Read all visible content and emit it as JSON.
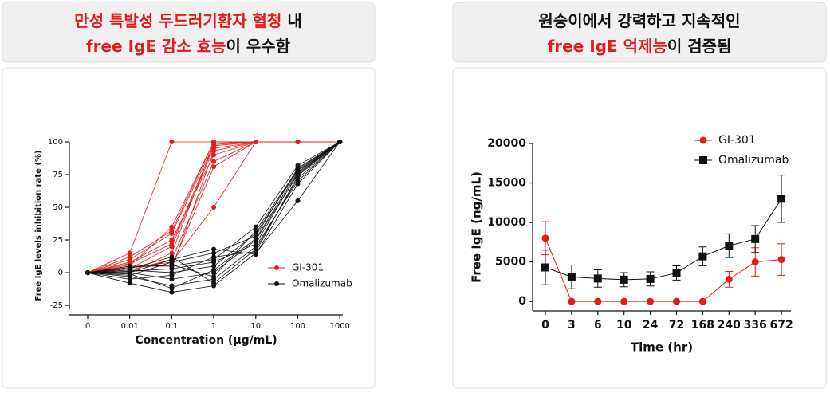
{
  "panels": [
    {
      "heading": [
        [
          {
            "text": "만성 특발성 두드러기환자 혈청",
            "highlight": true
          },
          {
            "text": " 내",
            "highlight": false
          }
        ],
        [
          {
            "text": "free IgE 감소 효능",
            "highlight": true
          },
          {
            "text": "이 우수함",
            "highlight": false
          }
        ]
      ]
    },
    {
      "heading": [
        [
          {
            "text": "원숭이에서 강력하고 지속적인",
            "highlight": false
          }
        ],
        [
          {
            "text": "free IgE 억제능",
            "highlight": true
          },
          {
            "text": "이 검증됨",
            "highlight": false
          }
        ]
      ]
    }
  ],
  "chart_data": [
    {
      "type": "spaghetti",
      "y_label": "Free IgE levels inhibition rate (%)",
      "x_label": "Concentration (μg/mL)",
      "categories": [
        "0",
        "0.01",
        "0.1",
        "1",
        "10",
        "100",
        "1000"
      ],
      "ylim": [
        -28,
        100
      ],
      "yticks": [
        -25,
        0,
        25,
        50,
        75,
        100
      ],
      "legend": "lower right",
      "series": [
        {
          "name": "GI-301",
          "color": "#e31b1b",
          "lines": [
            [
              0,
              15,
              100,
              100,
              100,
              100,
              100
            ],
            [
              0,
              5,
              35,
              100,
              100,
              100,
              100
            ],
            [
              0,
              10,
              30,
              98,
              100,
              100,
              100
            ],
            [
              0,
              3,
              20,
              95,
              100,
              100,
              100
            ],
            [
              0,
              8,
              25,
              90,
              100,
              100,
              100
            ],
            [
              0,
              2,
              10,
              85,
              100,
              100,
              100
            ],
            [
              0,
              6,
              5,
              81,
              100,
              100,
              100
            ],
            [
              0,
              4,
              8,
              50,
              100,
              100,
              100
            ],
            [
              0,
              12,
              32,
              100,
              100,
              100,
              100
            ],
            [
              0,
              0,
              15,
              99,
              100,
              100,
              100
            ],
            [
              0,
              7,
              22,
              97,
              100,
              100,
              100
            ],
            [
              0,
              1,
              3,
              93,
              100,
              100,
              100
            ]
          ]
        },
        {
          "name": "Omalizumab",
          "color": "#111111",
          "lines": [
            [
              0,
              -8,
              -15,
              -10,
              15,
              55,
              100
            ],
            [
              0,
              -3,
              -10,
              -5,
              20,
              70,
              100
            ],
            [
              0,
              0,
              -5,
              0,
              25,
              75,
              100
            ],
            [
              0,
              2,
              0,
              5,
              30,
              78,
              100
            ],
            [
              0,
              5,
              5,
              10,
              35,
              82,
              100
            ],
            [
              0,
              -2,
              8,
              15,
              28,
              80,
              100
            ],
            [
              0,
              3,
              12,
              -8,
              18,
              72,
              100
            ],
            [
              0,
              1,
              3,
              8,
              22,
              76,
              100
            ],
            [
              0,
              -5,
              -2,
              12,
              16,
              74,
              100
            ],
            [
              0,
              4,
              6,
              -3,
              32,
              79,
              100
            ],
            [
              0,
              0,
              10,
              18,
              14,
              68,
              100
            ],
            [
              0,
              -1,
              -12,
              2,
              26,
              77,
              100
            ]
          ]
        }
      ]
    },
    {
      "type": "errorline",
      "y_label": "Free IgE (ng/mL)",
      "x_label": "Time (hr)",
      "categories": [
        "0",
        "3",
        "6",
        "10",
        "24",
        "72",
        "168",
        "240",
        "336",
        "672"
      ],
      "ylim": [
        -1200,
        20000
      ],
      "yticks": [
        0,
        5000,
        10000,
        15000,
        20000
      ],
      "legend": "upper right",
      "series": [
        {
          "name": "GI-301",
          "color": "#e31b1b",
          "marker": "circle",
          "values": [
            8000,
            0,
            0,
            0,
            0,
            0,
            0,
            2800,
            5000,
            5300
          ],
          "errors": [
            2100,
            0,
            0,
            0,
            0,
            0,
            0,
            1000,
            1800,
            2000
          ]
        },
        {
          "name": "Omalizumab",
          "color": "#111111",
          "marker": "square",
          "values": [
            4300,
            3100,
            2900,
            2750,
            2850,
            3600,
            5700,
            7050,
            7900,
            13000
          ],
          "errors": [
            2200,
            1500,
            1100,
            900,
            900,
            900,
            1200,
            1500,
            1700,
            3000
          ]
        }
      ]
    }
  ]
}
